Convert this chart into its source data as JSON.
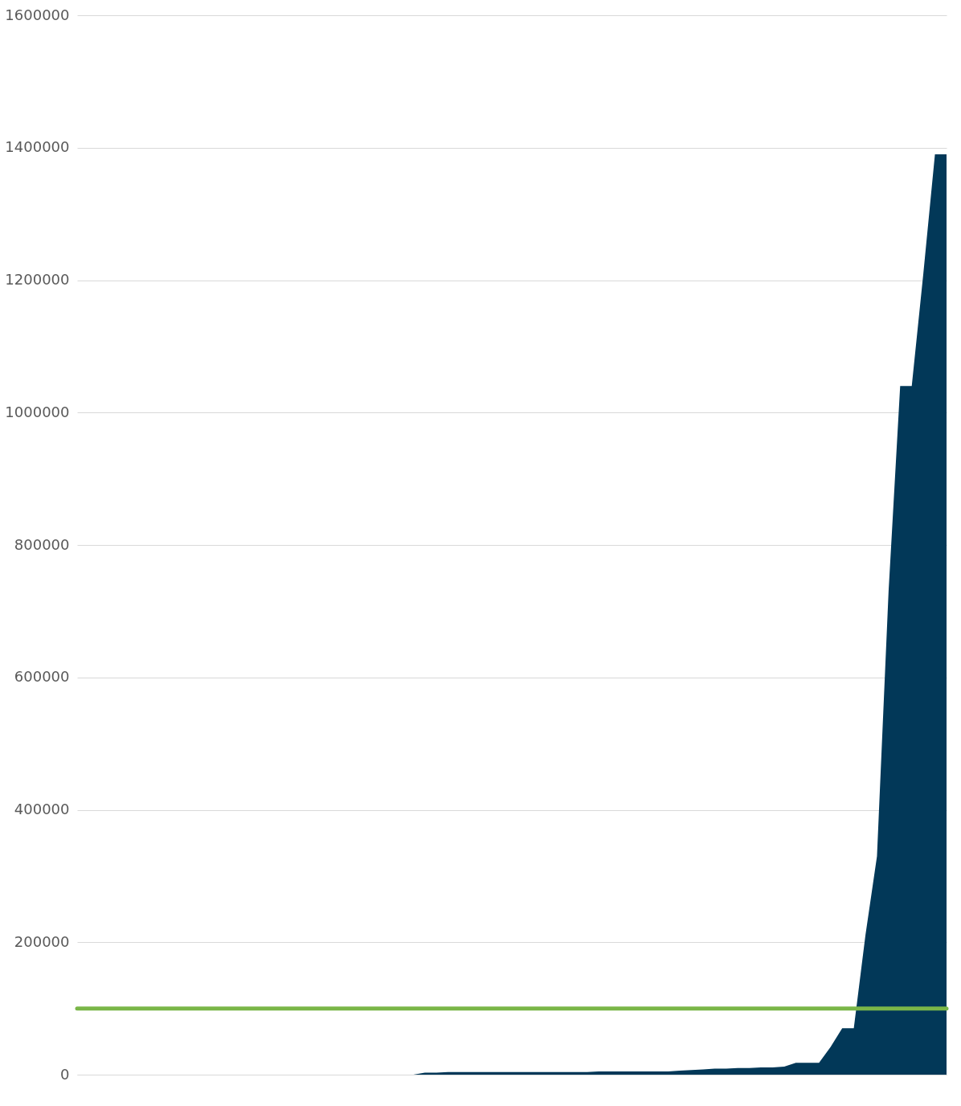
{
  "chart_data": {
    "type": "area",
    "categories": [
      null,
      null,
      null,
      null,
      null,
      null,
      null,
      null,
      null,
      null,
      null,
      null,
      null,
      null,
      null,
      null,
      null,
      null,
      null,
      null,
      null,
      null,
      null,
      null,
      null,
      null,
      null,
      null,
      null,
      null,
      null,
      null,
      null,
      null,
      null,
      null,
      null,
      null,
      null,
      null,
      null,
      null,
      null,
      null,
      null,
      null,
      null,
      null,
      null,
      null,
      null,
      null,
      null,
      null,
      null,
      null,
      null,
      null,
      null,
      null,
      null,
      null,
      null,
      null,
      null,
      null,
      null,
      null,
      null,
      null,
      null,
      null,
      null,
      null,
      null,
      null
    ],
    "series": [
      {
        "color": "#023858",
        "values": [
          0,
          0,
          0,
          0,
          0,
          0,
          0,
          0,
          0,
          0,
          0,
          0,
          0,
          0,
          0,
          0,
          0,
          0,
          0,
          0,
          0,
          0,
          0,
          0,
          0,
          0,
          0,
          0,
          0,
          0,
          3000,
          3000,
          4000,
          4000,
          4000,
          4000,
          4000,
          4000,
          4000,
          4000,
          4000,
          4000,
          4000,
          4000,
          4000,
          5000,
          5000,
          5000,
          5000,
          5000,
          5000,
          5000,
          6000,
          7000,
          8000,
          9000,
          9000,
          10000,
          10000,
          11000,
          11000,
          12000,
          18000,
          18000,
          18000,
          42000,
          70000,
          70000,
          210000,
          330000,
          730000,
          1040000,
          1040000,
          1210000,
          1390000,
          1390000
        ]
      }
    ],
    "ref_lines": [
      {
        "axis": "y",
        "value": 100000,
        "color": "#7ab648"
      }
    ],
    "ylim": [
      0,
      1600000
    ],
    "yticks": [
      0,
      200000,
      400000,
      600000,
      800000,
      1000000,
      1200000,
      1400000,
      1600000
    ],
    "grid": "y",
    "tick_labels": "y"
  }
}
